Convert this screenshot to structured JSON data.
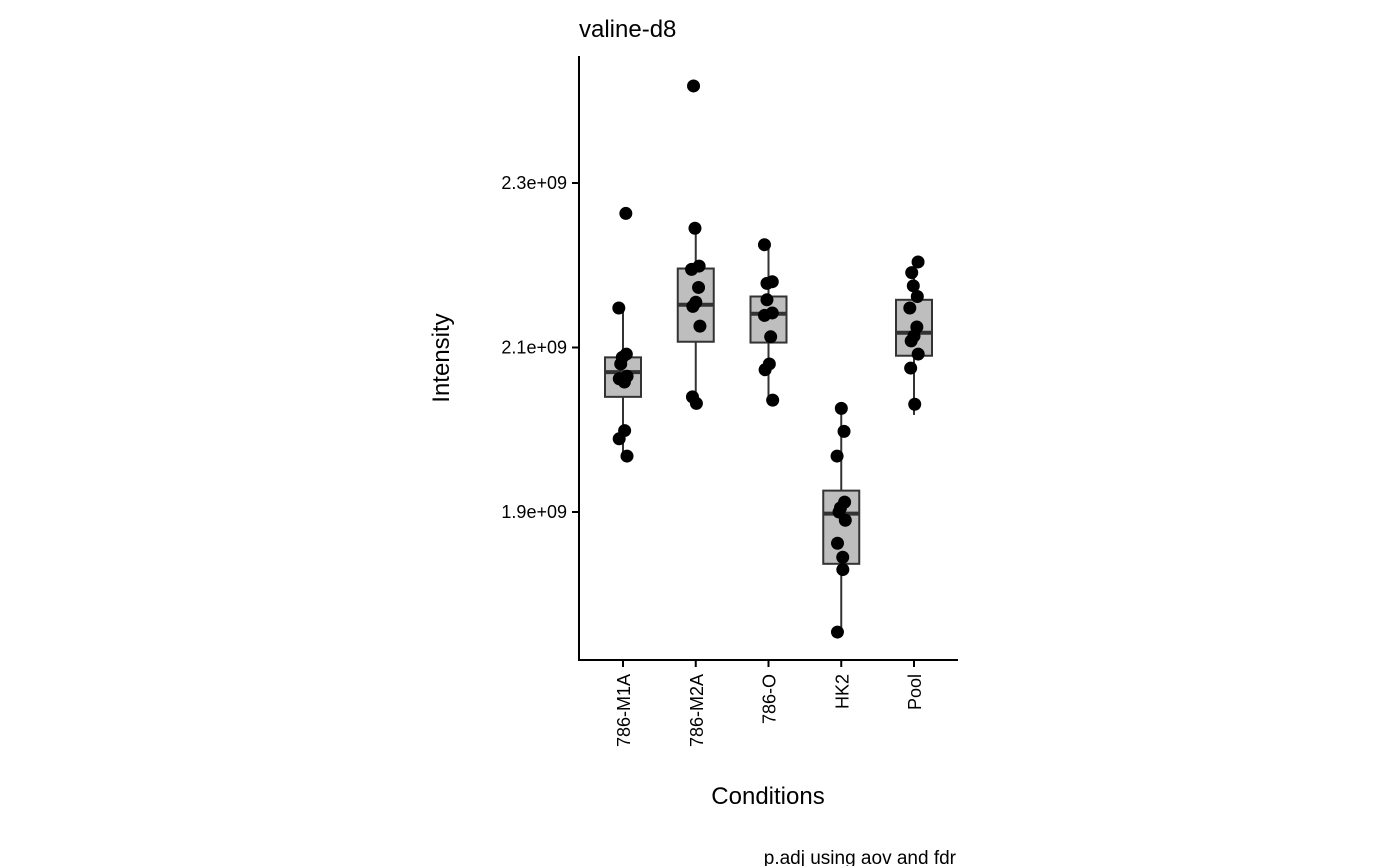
{
  "chart_data": {
    "type": "box",
    "title": "valine-d8",
    "xlabel": "Conditions",
    "ylabel": "Intensity",
    "caption": "p.adj using  aov and fdr",
    "categories": [
      "786-M1A",
      "786-M2A",
      "786-O",
      "HK2",
      "Pool"
    ],
    "y_ticks": [
      {
        "value": 1900000000,
        "label": "1.9e+09"
      },
      {
        "value": 2100000000,
        "label": "2.1e+09"
      },
      {
        "value": 2300000000,
        "label": "2.3e+09"
      }
    ],
    "ylim": [
      1720000000,
      2450000000
    ],
    "grid": false,
    "legend": "none",
    "colors": {
      "box_fill": "#bebebe",
      "box_stroke": "#333333",
      "point": "#000000",
      "axis": "#000000"
    },
    "boxes": [
      {
        "category": "786-M1A",
        "min": 1968000000,
        "q1": 2040000000,
        "median": 2070000000,
        "q3": 2088000000,
        "max": 2148000000
      },
      {
        "category": "786-M2A",
        "min": 2038000000,
        "q1": 2107000000,
        "median": 2152000000,
        "q3": 2196000000,
        "max": 2244000000
      },
      {
        "category": "786-O",
        "min": 2036000000,
        "q1": 2106000000,
        "median": 2141000000,
        "q3": 2162000000,
        "max": 2224000000
      },
      {
        "category": "HK2",
        "min": 1754000000,
        "q1": 1837000000,
        "median": 1898000000,
        "q3": 1926000000,
        "max": 2026000000
      },
      {
        "category": "Pool",
        "min": 2018000000,
        "q1": 2090000000,
        "median": 2118000000,
        "q3": 2158000000,
        "max": 2205000000
      }
    ],
    "points": [
      {
        "category": "786-M1A",
        "values": [
          2263000000,
          2148000000,
          2092000000,
          2088000000,
          2080000000,
          2065000000,
          2062000000,
          2058000000,
          1999000000,
          1989000000,
          1968000000
        ]
      },
      {
        "category": "786-M2A",
        "values": [
          2418000000,
          2245000000,
          2199000000,
          2195000000,
          2173000000,
          2155000000,
          2150000000,
          2126000000,
          2040000000,
          2032000000
        ]
      },
      {
        "category": "786-O",
        "values": [
          2225000000,
          2180000000,
          2178000000,
          2158000000,
          2142000000,
          2139000000,
          2113000000,
          2080000000,
          2073000000,
          2036000000
        ]
      },
      {
        "category": "HK2",
        "values": [
          2026000000,
          1998000000,
          1968000000,
          1912000000,
          1905000000,
          1900000000,
          1890000000,
          1862000000,
          1845000000,
          1830000000,
          1754000000
        ]
      },
      {
        "category": "Pool",
        "values": [
          2204000000,
          2191000000,
          2175000000,
          2162000000,
          2148000000,
          2125000000,
          2114000000,
          2108000000,
          2092000000,
          2075000000,
          2031000000
        ]
      }
    ]
  }
}
